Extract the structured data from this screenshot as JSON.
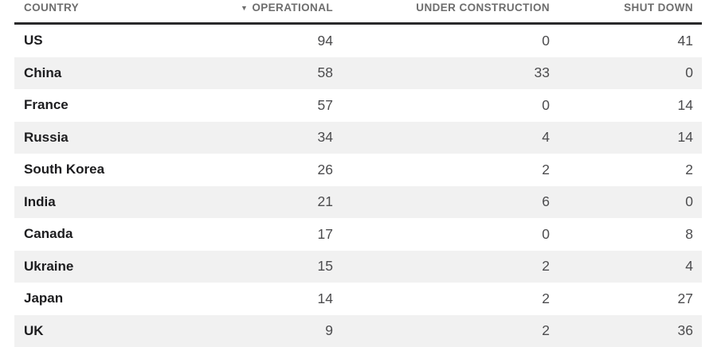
{
  "chart_data": {
    "type": "table",
    "columns": [
      "COUNTRY",
      "OPERATIONAL",
      "UNDER CONSTRUCTION",
      "SHUT DOWN"
    ],
    "sort": {
      "column": "OPERATIONAL",
      "direction": "descending",
      "icon": "▼"
    },
    "rows": [
      {
        "country": "US",
        "operational": "94",
        "under_construction": "0",
        "shut_down": "41"
      },
      {
        "country": "China",
        "operational": "58",
        "under_construction": "33",
        "shut_down": "0"
      },
      {
        "country": "France",
        "operational": "57",
        "under_construction": "0",
        "shut_down": "14"
      },
      {
        "country": "Russia",
        "operational": "34",
        "under_construction": "4",
        "shut_down": "14"
      },
      {
        "country": "South Korea",
        "operational": "26",
        "under_construction": "2",
        "shut_down": "2"
      },
      {
        "country": "India",
        "operational": "21",
        "under_construction": "6",
        "shut_down": "0"
      },
      {
        "country": "Canada",
        "operational": "17",
        "under_construction": "0",
        "shut_down": "8"
      },
      {
        "country": "Ukraine",
        "operational": "15",
        "under_construction": "2",
        "shut_down": "4"
      },
      {
        "country": "Japan",
        "operational": "14",
        "under_construction": "2",
        "shut_down": "27"
      },
      {
        "country": "UK",
        "operational": "9",
        "under_construction": "2",
        "shut_down": "36"
      }
    ]
  },
  "header": {
    "country_label": "COUNTRY",
    "operational_label": "OPERATIONAL",
    "operational_sort_icon": "▼",
    "under_construction_label": "UNDER CONSTRUCTION",
    "shut_down_label": "SHUT DOWN"
  },
  "colors": {
    "stripe_background": "#f1f1f1",
    "header_rule": "#29292b",
    "header_text": "#6d6d6d",
    "country_text": "#1d1d1f",
    "number_text": "#4c4c4e",
    "page_background": "#ffffff"
  }
}
